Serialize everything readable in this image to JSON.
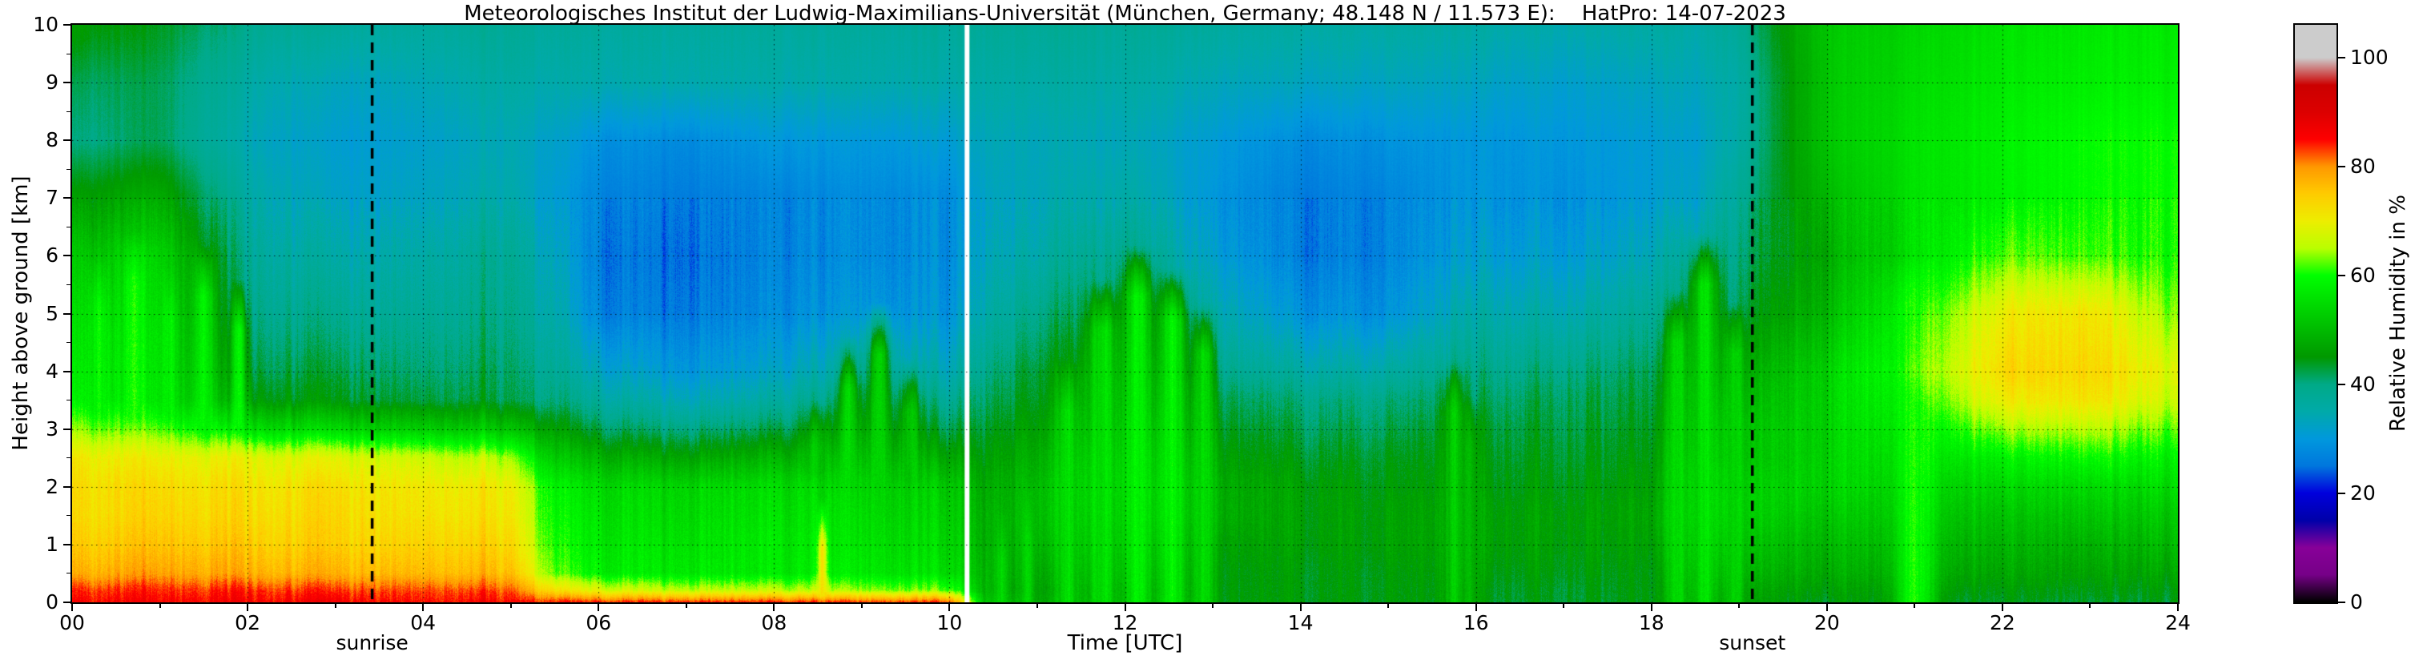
{
  "title": "Meteorologisches Institut der Ludwig-Maximilians-Universität (München, Germany; 48.148 N / 11.573 E):    HatPro: 14-07-2023",
  "axes": {
    "x": {
      "label": "Time [UTC]",
      "min": 0,
      "max": 24,
      "major_ticks": [
        0,
        2,
        4,
        6,
        8,
        10,
        12,
        14,
        16,
        18,
        20,
        22,
        24
      ],
      "tick_labels": [
        "00",
        "02",
        "04",
        "06",
        "08",
        "10",
        "12",
        "14",
        "16",
        "18",
        "20",
        "22",
        "24"
      ],
      "minor_step": 1
    },
    "y": {
      "label": "Height above ground [km]",
      "min": 0,
      "max": 10,
      "ticks": [
        0,
        1,
        2,
        3,
        4,
        5,
        6,
        7,
        8,
        9,
        10
      ],
      "minor_step": 0.5
    }
  },
  "colorbar": {
    "label": "Relative Humidity in %",
    "min": 0,
    "max": 100,
    "ticks": [
      0,
      20,
      40,
      60,
      80,
      100
    ],
    "over_color": "#cccccc",
    "colormap": [
      [
        0,
        "#000000"
      ],
      [
        5,
        "#770088"
      ],
      [
        10,
        "#880099"
      ],
      [
        15,
        "#0000aa"
      ],
      [
        20,
        "#0000dd"
      ],
      [
        25,
        "#0077dd"
      ],
      [
        30,
        "#0099dd"
      ],
      [
        35,
        "#00aaaa"
      ],
      [
        40,
        "#00aa88"
      ],
      [
        45,
        "#009900"
      ],
      [
        50,
        "#00bb00"
      ],
      [
        55,
        "#00dd00"
      ],
      [
        60,
        "#00ff00"
      ],
      [
        65,
        "#bbff00"
      ],
      [
        70,
        "#eeee00"
      ],
      [
        75,
        "#ffcc00"
      ],
      [
        80,
        "#ff9900"
      ],
      [
        85,
        "#ff0000"
      ],
      [
        90,
        "#dd0000"
      ],
      [
        95,
        "#cc0000"
      ],
      [
        100,
        "#cccccc"
      ]
    ]
  },
  "annotations": {
    "sunrise": {
      "label": "sunrise",
      "time": 3.42
    },
    "sunset": {
      "label": "sunset",
      "time": 19.15
    },
    "data_gap_times": [
      10.2
    ]
  },
  "chart_data": {
    "type": "heatmap",
    "quantity": "Relative Humidity in %",
    "x_unit": "hours UTC",
    "y_unit": "km above ground",
    "x_hours": [
      0,
      1,
      2,
      3,
      4,
      5,
      5.5,
      6,
      7,
      8,
      9,
      10,
      10.4,
      11,
      12,
      13,
      14,
      15,
      16,
      17,
      18,
      18.5,
      19,
      20,
      21,
      22,
      23,
      24
    ],
    "heights_km": [
      0,
      0.2,
      0.5,
      1,
      1.5,
      2,
      2.5,
      3,
      3.5,
      4,
      5,
      6,
      7,
      8,
      9,
      10
    ],
    "rh_values": [
      [
        86,
        86,
        86,
        86,
        85,
        85,
        84,
        84,
        84,
        84,
        83,
        83,
        52,
        48,
        47,
        46,
        45,
        45,
        45,
        44,
        45,
        45,
        45,
        45,
        45,
        44,
        44,
        44
      ],
      [
        84,
        84,
        84,
        83,
        83,
        82,
        72,
        68,
        66,
        66,
        64,
        62,
        50,
        47,
        47,
        46,
        45,
        45,
        45,
        44,
        45,
        46,
        46,
        46,
        46,
        45,
        45,
        45
      ],
      [
        78,
        79,
        78,
        77,
        77,
        76,
        62,
        58,
        57,
        57,
        57,
        55,
        50,
        48,
        49,
        46,
        45,
        45,
        46,
        45,
        45,
        48,
        48,
        48,
        48,
        47,
        47,
        47
      ],
      [
        75,
        76,
        75,
        74,
        74,
        73,
        60,
        57,
        56,
        57,
        56,
        54,
        49,
        50,
        51,
        47,
        46,
        46,
        47,
        46,
        46,
        52,
        50,
        50,
        50,
        49,
        49,
        50
      ],
      [
        73,
        74,
        73,
        73,
        72,
        71,
        59,
        56,
        55,
        56,
        55,
        53,
        49,
        51,
        53,
        49,
        46,
        46,
        47,
        46,
        47,
        54,
        52,
        52,
        52,
        51,
        52,
        52
      ],
      [
        73,
        73,
        72,
        72,
        71,
        70,
        58,
        55,
        54,
        55,
        54,
        52,
        48,
        51,
        54,
        49,
        46,
        45,
        46,
        45,
        46,
        54,
        52,
        54,
        54,
        54,
        55,
        55
      ],
      [
        71,
        70,
        69,
        68,
        67,
        64,
        52,
        49,
        47,
        49,
        50,
        47,
        46,
        49,
        53,
        47,
        44,
        44,
        45,
        44,
        45,
        52,
        50,
        54,
        56,
        58,
        60,
        58
      ],
      [
        64,
        62,
        56,
        54,
        53,
        51,
        46,
        42,
        40,
        42,
        46,
        42,
        44,
        47,
        51,
        45,
        42,
        42,
        44,
        43,
        44,
        50,
        50,
        54,
        58,
        64,
        66,
        62
      ],
      [
        58,
        56,
        46,
        44,
        43,
        42,
        40,
        37,
        34,
        36,
        42,
        38,
        42,
        45,
        49,
        43,
        40,
        40,
        42,
        42,
        43,
        48,
        48,
        54,
        60,
        70,
        72,
        66
      ],
      [
        57,
        56,
        43,
        42,
        41,
        41,
        38,
        33,
        30,
        32,
        37,
        34,
        40,
        44,
        48,
        40,
        36,
        36,
        40,
        40,
        42,
        46,
        46,
        54,
        62,
        73,
        74,
        68
      ],
      [
        55,
        55,
        40,
        38,
        38,
        39,
        35,
        27,
        26,
        28,
        30,
        29,
        36,
        40,
        44,
        36,
        29,
        29,
        36,
        35,
        38,
        42,
        42,
        50,
        60,
        70,
        72,
        63
      ],
      [
        52,
        54,
        38,
        35,
        36,
        38,
        33,
        26,
        25,
        27,
        28,
        28,
        34,
        36,
        40,
        32,
        26,
        27,
        32,
        31,
        34,
        38,
        40,
        48,
        56,
        62,
        62,
        60
      ],
      [
        46,
        48,
        36,
        32,
        33,
        35,
        31,
        27,
        26,
        27,
        28,
        28,
        33,
        34,
        36,
        30,
        26,
        27,
        30,
        29,
        31,
        33,
        38,
        50,
        56,
        58,
        60,
        60
      ],
      [
        40,
        42,
        34,
        31,
        32,
        34,
        32,
        29,
        28,
        30,
        30,
        31,
        34,
        34,
        34,
        31,
        28,
        29,
        30,
        30,
        31,
        32,
        36,
        52,
        56,
        58,
        60,
        60
      ],
      [
        42,
        42,
        36,
        33,
        34,
        36,
        35,
        35,
        35,
        35,
        35,
        35,
        36,
        36,
        36,
        34,
        33,
        33,
        33,
        32,
        33,
        34,
        36,
        52,
        55,
        57,
        58,
        58
      ],
      [
        46,
        44,
        39,
        37,
        37,
        38,
        37,
        37,
        37,
        37,
        37,
        37,
        38,
        38,
        38,
        37,
        36,
        36,
        36,
        35,
        36,
        36,
        38,
        52,
        54,
        56,
        57,
        57
      ]
    ],
    "plumes": [
      {
        "t": 0.3,
        "top": 6.0,
        "w": 0.1,
        "rh": 60
      },
      {
        "t": 0.7,
        "top": 6.4,
        "w": 0.12,
        "rh": 60
      },
      {
        "t": 1.1,
        "top": 5.8,
        "w": 0.1,
        "rh": 58
      },
      {
        "t": 1.5,
        "top": 6.2,
        "w": 0.1,
        "rh": 60
      },
      {
        "t": 1.9,
        "top": 5.6,
        "w": 0.08,
        "rh": 58
      },
      {
        "t": 8.5,
        "top": 3.5,
        "w": 0.12,
        "rh": 52
      },
      {
        "t": 8.55,
        "top": 1.8,
        "w": 0.05,
        "rh": 74
      },
      {
        "t": 8.85,
        "top": 4.6,
        "w": 0.1,
        "rh": 54
      },
      {
        "t": 9.2,
        "top": 5.2,
        "w": 0.12,
        "rh": 54
      },
      {
        "t": 9.55,
        "top": 4.2,
        "w": 0.1,
        "rh": 52
      },
      {
        "t": 10.6,
        "top": 1.6,
        "w": 0.06,
        "rh": 55
      },
      {
        "t": 10.9,
        "top": 2.0,
        "w": 0.06,
        "rh": 55
      },
      {
        "t": 11.35,
        "top": 4.2,
        "w": 0.12,
        "rh": 55
      },
      {
        "t": 11.75,
        "top": 5.6,
        "w": 0.15,
        "rh": 57
      },
      {
        "t": 12.15,
        "top": 6.2,
        "w": 0.15,
        "rh": 58
      },
      {
        "t": 12.55,
        "top": 5.8,
        "w": 0.15,
        "rh": 58
      },
      {
        "t": 12.9,
        "top": 5.2,
        "w": 0.12,
        "rh": 55
      },
      {
        "t": 15.75,
        "top": 4.2,
        "w": 0.12,
        "rh": 52
      },
      {
        "t": 15.95,
        "top": 3.6,
        "w": 0.08,
        "rh": 50
      },
      {
        "t": 18.3,
        "top": 5.4,
        "w": 0.12,
        "rh": 55
      },
      {
        "t": 18.6,
        "top": 6.4,
        "w": 0.15,
        "rh": 57
      },
      {
        "t": 18.95,
        "top": 5.2,
        "w": 0.1,
        "rh": 55
      },
      {
        "t": 21.0,
        "top": 6.0,
        "w": 0.25,
        "rh": 60
      }
    ]
  }
}
